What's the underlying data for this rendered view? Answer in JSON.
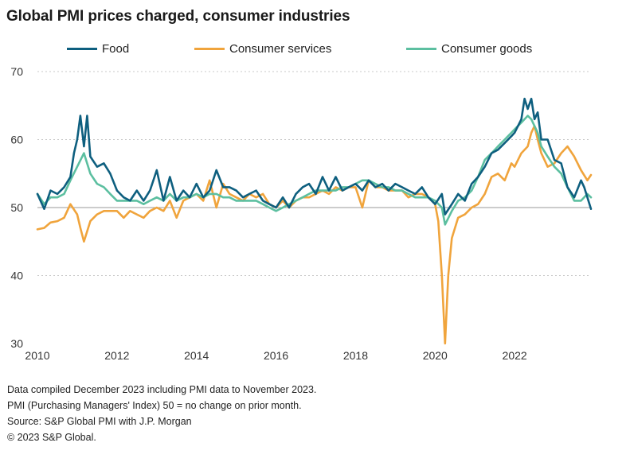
{
  "title": "Global PMI prices charged, consumer industries",
  "notes": [
    "Data compiled December 2023 including PMI data to November 2023.",
    "PMI (Purchasing Managers' Index) 50 = no change on prior month.",
    "Source: S&P Global PMI with J.P. Morgan",
    "© 2023 S&P Global."
  ],
  "chart_data": {
    "type": "line",
    "title": "Global PMI prices charged, consumer industries",
    "xlabel": "",
    "ylabel": "",
    "xlim": [
      2010.0,
      2023.92
    ],
    "ylim": [
      30,
      70
    ],
    "yticks": [
      "30",
      "40",
      "50",
      "60",
      "70"
    ],
    "xticks": [
      "2010",
      "2012",
      "2014",
      "2016",
      "2018",
      "2020",
      "2022"
    ],
    "grid": true,
    "reference_line": 50,
    "legend_position": "top",
    "series": [
      {
        "name": "Food",
        "color": "#0e5f7f",
        "points": [
          [
            2010.0,
            52.0
          ],
          [
            2010.17,
            49.8
          ],
          [
            2010.33,
            52.5
          ],
          [
            2010.5,
            52.0
          ],
          [
            2010.67,
            53.0
          ],
          [
            2010.83,
            54.5
          ],
          [
            2010.92,
            58.0
          ],
          [
            2011.0,
            60.0
          ],
          [
            2011.08,
            63.5
          ],
          [
            2011.17,
            59.0
          ],
          [
            2011.25,
            63.5
          ],
          [
            2011.33,
            57.5
          ],
          [
            2011.5,
            56.0
          ],
          [
            2011.67,
            56.5
          ],
          [
            2011.83,
            55.0
          ],
          [
            2012.0,
            52.5
          ],
          [
            2012.17,
            51.5
          ],
          [
            2012.33,
            51.0
          ],
          [
            2012.5,
            52.5
          ],
          [
            2012.67,
            51.0
          ],
          [
            2012.83,
            52.5
          ],
          [
            2013.0,
            55.5
          ],
          [
            2013.17,
            51.0
          ],
          [
            2013.33,
            54.5
          ],
          [
            2013.5,
            51.0
          ],
          [
            2013.67,
            52.5
          ],
          [
            2013.83,
            51.5
          ],
          [
            2014.0,
            53.5
          ],
          [
            2014.17,
            51.5
          ],
          [
            2014.33,
            52.5
          ],
          [
            2014.5,
            55.5
          ],
          [
            2014.67,
            53.0
          ],
          [
            2014.83,
            53.0
          ],
          [
            2015.0,
            52.5
          ],
          [
            2015.17,
            51.5
          ],
          [
            2015.33,
            52.0
          ],
          [
            2015.5,
            52.5
          ],
          [
            2015.67,
            51.0
          ],
          [
            2015.83,
            50.5
          ],
          [
            2016.0,
            50.0
          ],
          [
            2016.17,
            51.5
          ],
          [
            2016.33,
            50.0
          ],
          [
            2016.5,
            52.0
          ],
          [
            2016.67,
            53.0
          ],
          [
            2016.83,
            53.5
          ],
          [
            2017.0,
            52.0
          ],
          [
            2017.17,
            54.5
          ],
          [
            2017.33,
            52.5
          ],
          [
            2017.5,
            54.5
          ],
          [
            2017.67,
            52.5
          ],
          [
            2017.83,
            53.0
          ],
          [
            2018.0,
            53.5
          ],
          [
            2018.17,
            52.5
          ],
          [
            2018.33,
            54.0
          ],
          [
            2018.5,
            53.0
          ],
          [
            2018.67,
            53.5
          ],
          [
            2018.83,
            52.5
          ],
          [
            2019.0,
            53.5
          ],
          [
            2019.17,
            53.0
          ],
          [
            2019.33,
            52.5
          ],
          [
            2019.5,
            52.0
          ],
          [
            2019.67,
            53.0
          ],
          [
            2019.83,
            51.5
          ],
          [
            2020.0,
            50.5
          ],
          [
            2020.17,
            52.0
          ],
          [
            2020.25,
            49.0
          ],
          [
            2020.42,
            50.5
          ],
          [
            2020.58,
            52.0
          ],
          [
            2020.75,
            51.0
          ],
          [
            2020.92,
            53.5
          ],
          [
            2021.08,
            54.5
          ],
          [
            2021.25,
            56.0
          ],
          [
            2021.42,
            58.0
          ],
          [
            2021.58,
            58.5
          ],
          [
            2021.75,
            59.5
          ],
          [
            2021.92,
            60.5
          ],
          [
            2022.0,
            61.0
          ],
          [
            2022.17,
            63.0
          ],
          [
            2022.25,
            66.0
          ],
          [
            2022.33,
            64.5
          ],
          [
            2022.42,
            66.0
          ],
          [
            2022.5,
            63.0
          ],
          [
            2022.58,
            64.0
          ],
          [
            2022.67,
            60.0
          ],
          [
            2022.83,
            60.0
          ],
          [
            2023.0,
            57.0
          ],
          [
            2023.17,
            56.5
          ],
          [
            2023.33,
            53.0
          ],
          [
            2023.5,
            51.5
          ],
          [
            2023.67,
            54.0
          ],
          [
            2023.75,
            53.0
          ],
          [
            2023.92,
            49.8
          ]
        ]
      },
      {
        "name": "Consumer services",
        "color": "#f0a43c",
        "points": [
          [
            2010.0,
            46.8
          ],
          [
            2010.17,
            47.0
          ],
          [
            2010.33,
            47.8
          ],
          [
            2010.5,
            48.0
          ],
          [
            2010.67,
            48.5
          ],
          [
            2010.83,
            50.5
          ],
          [
            2011.0,
            49.0
          ],
          [
            2011.08,
            47.0
          ],
          [
            2011.17,
            45.0
          ],
          [
            2011.33,
            48.0
          ],
          [
            2011.5,
            49.0
          ],
          [
            2011.67,
            49.5
          ],
          [
            2011.83,
            49.5
          ],
          [
            2012.0,
            49.5
          ],
          [
            2012.17,
            48.5
          ],
          [
            2012.33,
            49.5
          ],
          [
            2012.5,
            49.0
          ],
          [
            2012.67,
            48.5
          ],
          [
            2012.83,
            49.5
          ],
          [
            2013.0,
            50.0
          ],
          [
            2013.17,
            49.5
          ],
          [
            2013.33,
            51.0
          ],
          [
            2013.5,
            48.5
          ],
          [
            2013.67,
            51.0
          ],
          [
            2013.83,
            51.5
          ],
          [
            2014.0,
            52.0
          ],
          [
            2014.17,
            51.0
          ],
          [
            2014.33,
            54.0
          ],
          [
            2014.5,
            50.0
          ],
          [
            2014.67,
            53.5
          ],
          [
            2014.83,
            52.0
          ],
          [
            2015.0,
            51.5
          ],
          [
            2015.17,
            51.0
          ],
          [
            2015.33,
            52.0
          ],
          [
            2015.5,
            51.5
          ],
          [
            2015.67,
            52.0
          ],
          [
            2015.83,
            50.5
          ],
          [
            2016.0,
            50.0
          ],
          [
            2016.17,
            51.0
          ],
          [
            2016.33,
            50.0
          ],
          [
            2016.5,
            51.0
          ],
          [
            2016.67,
            51.5
          ],
          [
            2016.83,
            51.5
          ],
          [
            2017.0,
            52.0
          ],
          [
            2017.17,
            52.5
          ],
          [
            2017.33,
            52.0
          ],
          [
            2017.5,
            53.0
          ],
          [
            2017.67,
            52.5
          ],
          [
            2017.83,
            53.0
          ],
          [
            2018.0,
            53.0
          ],
          [
            2018.17,
            50.0
          ],
          [
            2018.33,
            54.0
          ],
          [
            2018.5,
            53.0
          ],
          [
            2018.67,
            53.0
          ],
          [
            2018.83,
            52.5
          ],
          [
            2019.0,
            52.5
          ],
          [
            2019.17,
            52.5
          ],
          [
            2019.33,
            51.5
          ],
          [
            2019.5,
            52.0
          ],
          [
            2019.67,
            52.0
          ],
          [
            2019.83,
            51.5
          ],
          [
            2020.0,
            50.5
          ],
          [
            2020.08,
            48.0
          ],
          [
            2020.17,
            40.0
          ],
          [
            2020.25,
            30.0
          ],
          [
            2020.33,
            40.0
          ],
          [
            2020.42,
            45.5
          ],
          [
            2020.58,
            48.5
          ],
          [
            2020.75,
            49.0
          ],
          [
            2020.92,
            50.0
          ],
          [
            2021.08,
            50.5
          ],
          [
            2021.25,
            52.0
          ],
          [
            2021.42,
            54.5
          ],
          [
            2021.58,
            55.0
          ],
          [
            2021.75,
            54.0
          ],
          [
            2021.92,
            56.5
          ],
          [
            2022.0,
            56.0
          ],
          [
            2022.17,
            58.0
          ],
          [
            2022.33,
            59.0
          ],
          [
            2022.42,
            61.0
          ],
          [
            2022.5,
            62.0
          ],
          [
            2022.58,
            60.0
          ],
          [
            2022.67,
            58.0
          ],
          [
            2022.83,
            56.0
          ],
          [
            2023.0,
            56.5
          ],
          [
            2023.17,
            58.0
          ],
          [
            2023.33,
            59.0
          ],
          [
            2023.5,
            57.5
          ],
          [
            2023.67,
            55.5
          ],
          [
            2023.83,
            54.0
          ],
          [
            2023.92,
            54.8
          ]
        ]
      },
      {
        "name": "Consumer goods",
        "color": "#5cbfa0",
        "points": [
          [
            2010.0,
            52.0
          ],
          [
            2010.17,
            50.5
          ],
          [
            2010.33,
            51.5
          ],
          [
            2010.5,
            51.5
          ],
          [
            2010.67,
            52.0
          ],
          [
            2010.83,
            54.0
          ],
          [
            2011.0,
            56.0
          ],
          [
            2011.17,
            58.0
          ],
          [
            2011.33,
            55.0
          ],
          [
            2011.5,
            53.5
          ],
          [
            2011.67,
            53.0
          ],
          [
            2011.83,
            52.0
          ],
          [
            2012.0,
            51.0
          ],
          [
            2012.17,
            51.0
          ],
          [
            2012.33,
            51.0
          ],
          [
            2012.5,
            51.0
          ],
          [
            2012.67,
            50.5
          ],
          [
            2012.83,
            51.0
          ],
          [
            2013.0,
            51.5
          ],
          [
            2013.17,
            51.0
          ],
          [
            2013.33,
            52.0
          ],
          [
            2013.5,
            51.0
          ],
          [
            2013.67,
            51.5
          ],
          [
            2013.83,
            51.5
          ],
          [
            2014.0,
            52.0
          ],
          [
            2014.17,
            51.5
          ],
          [
            2014.33,
            52.0
          ],
          [
            2014.5,
            52.0
          ],
          [
            2014.67,
            51.5
          ],
          [
            2014.83,
            51.5
          ],
          [
            2015.0,
            51.0
          ],
          [
            2015.17,
            51.0
          ],
          [
            2015.33,
            51.0
          ],
          [
            2015.5,
            51.0
          ],
          [
            2015.67,
            50.5
          ],
          [
            2015.83,
            50.0
          ],
          [
            2016.0,
            49.5
          ],
          [
            2016.17,
            50.0
          ],
          [
            2016.33,
            50.5
          ],
          [
            2016.5,
            51.0
          ],
          [
            2016.67,
            51.5
          ],
          [
            2016.83,
            52.0
          ],
          [
            2017.0,
            52.5
          ],
          [
            2017.17,
            52.5
          ],
          [
            2017.33,
            52.5
          ],
          [
            2017.5,
            52.5
          ],
          [
            2017.67,
            53.0
          ],
          [
            2017.83,
            53.0
          ],
          [
            2018.0,
            53.5
          ],
          [
            2018.17,
            54.0
          ],
          [
            2018.33,
            54.0
          ],
          [
            2018.5,
            53.5
          ],
          [
            2018.67,
            53.0
          ],
          [
            2018.83,
            53.0
          ],
          [
            2019.0,
            52.5
          ],
          [
            2019.17,
            52.5
          ],
          [
            2019.33,
            52.0
          ],
          [
            2019.5,
            51.5
          ],
          [
            2019.67,
            51.5
          ],
          [
            2019.83,
            51.5
          ],
          [
            2020.0,
            51.0
          ],
          [
            2020.17,
            50.0
          ],
          [
            2020.25,
            47.5
          ],
          [
            2020.42,
            49.5
          ],
          [
            2020.58,
            51.0
          ],
          [
            2020.75,
            51.5
          ],
          [
            2020.92,
            52.5
          ],
          [
            2021.08,
            54.5
          ],
          [
            2021.25,
            57.0
          ],
          [
            2021.42,
            58.0
          ],
          [
            2021.58,
            59.0
          ],
          [
            2021.75,
            60.0
          ],
          [
            2021.92,
            61.0
          ],
          [
            2022.0,
            61.5
          ],
          [
            2022.17,
            62.5
          ],
          [
            2022.33,
            63.5
          ],
          [
            2022.42,
            63.0
          ],
          [
            2022.5,
            62.0
          ],
          [
            2022.58,
            61.0
          ],
          [
            2022.67,
            59.0
          ],
          [
            2022.83,
            57.5
          ],
          [
            2023.0,
            56.0
          ],
          [
            2023.17,
            55.0
          ],
          [
            2023.33,
            53.0
          ],
          [
            2023.5,
            51.0
          ],
          [
            2023.67,
            51.0
          ],
          [
            2023.83,
            52.0
          ],
          [
            2023.92,
            51.5
          ]
        ]
      }
    ]
  }
}
